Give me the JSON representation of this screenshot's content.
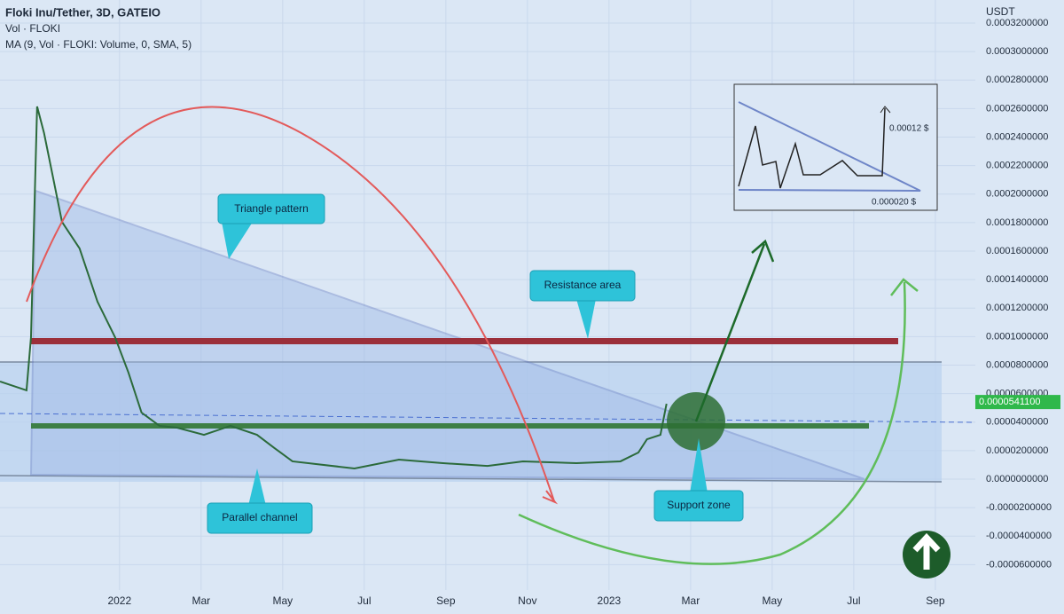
{
  "chart_data": {
    "type": "line",
    "title": "Floki Inu/Tether, 3D, GATEIO",
    "subtitle": "Vol · FLOKI",
    "indicator": "MA (9, Vol · FLOKI: Volume, 0, SMA, 5)",
    "y_unit": "USDT",
    "xlim": [
      -2.93,
      20.98
    ],
    "ylim": [
      -7.78e-05,
      0.0003362
    ],
    "xticks": [
      {
        "value": 0,
        "label": "2022"
      },
      {
        "value": 2,
        "label": "Mar"
      },
      {
        "value": 4,
        "label": "May"
      },
      {
        "value": 6,
        "label": "Jul"
      },
      {
        "value": 8,
        "label": "Sep"
      },
      {
        "value": 10,
        "label": "Nov"
      },
      {
        "value": 12,
        "label": "2023"
      },
      {
        "value": 14,
        "label": "Mar"
      },
      {
        "value": 16,
        "label": "May"
      },
      {
        "value": 18,
        "label": "Jul"
      },
      {
        "value": 20,
        "label": "Sep"
      }
    ],
    "yticks": [
      {
        "value": 0.00032,
        "label": "0.0003200000"
      },
      {
        "value": 0.0003,
        "label": "0.0003000000"
      },
      {
        "value": 0.00028,
        "label": "0.0002800000"
      },
      {
        "value": 0.00026,
        "label": "0.0002600000"
      },
      {
        "value": 0.00024,
        "label": "0.0002400000"
      },
      {
        "value": 0.00022,
        "label": "0.0002200000"
      },
      {
        "value": 0.0002,
        "label": "0.0002000000"
      },
      {
        "value": 0.00018,
        "label": "0.0001800000"
      },
      {
        "value": 0.00016,
        "label": "0.0001600000"
      },
      {
        "value": 0.00014,
        "label": "0.0001400000"
      },
      {
        "value": 0.00012,
        "label": "0.0001200000"
      },
      {
        "value": 0.0001,
        "label": "0.0001000000"
      },
      {
        "value": 8e-05,
        "label": "0.0000800000"
      },
      {
        "value": 6e-05,
        "label": "0.0000600000"
      },
      {
        "value": 4e-05,
        "label": "0.0000400000"
      },
      {
        "value": 2e-05,
        "label": "0.0000200000"
      },
      {
        "value": 0,
        "label": "0.0000000000"
      },
      {
        "value": -2e-05,
        "label": "-0.0000200000"
      },
      {
        "value": -4e-05,
        "label": "-0.0000400000"
      },
      {
        "value": -6e-05,
        "label": "-0.0000600000"
      }
    ],
    "grid": true,
    "x": [
      -2.93,
      -2.28,
      -2.17,
      -2.02,
      -1.85,
      -1.63,
      -1.41,
      -0.98,
      -0.54,
      -0.11,
      0.22,
      0.54,
      0.98,
      1.41,
      2.07,
      2.72,
      3.37,
      3.8,
      4.24,
      5.76,
      6.85,
      7.93,
      9.02,
      9.89,
      11.2,
      12.28,
      12.72,
      12.93,
      13.26,
      13.41
    ],
    "series": [
      {
        "name": "Floki Inu/Tether",
        "color": "#2b6a3a",
        "values": [
          6.85e-05,
          6.23e-05,
          9.96e-05,
          0.0002615,
          0.0002428,
          0.0002117,
          0.0001805,
          0.0001619,
          0.0001245,
          9.96e-05,
          7.47e-05,
          4.67e-05,
          3.74e-05,
          3.61e-05,
          3.11e-05,
          3.74e-05,
          3.11e-05,
          2.18e-05,
          1.25e-05,
          7.5e-06,
          1.37e-05,
          1.12e-05,
          9.3e-06,
          1.25e-05,
          1.12e-05,
          1.25e-05,
          1.87e-05,
          2.8e-05,
          3.11e-05,
          5.29e-05
        ]
      }
    ],
    "last_price": {
      "value": 5.411e-05,
      "label": "0.0000541100"
    },
    "annotations": [
      "Triangle pattern",
      "Resistance area",
      "Parallel channel",
      "Support zone"
    ],
    "inset_labels": [
      "0.00012 $",
      "0.000020 $"
    ]
  }
}
